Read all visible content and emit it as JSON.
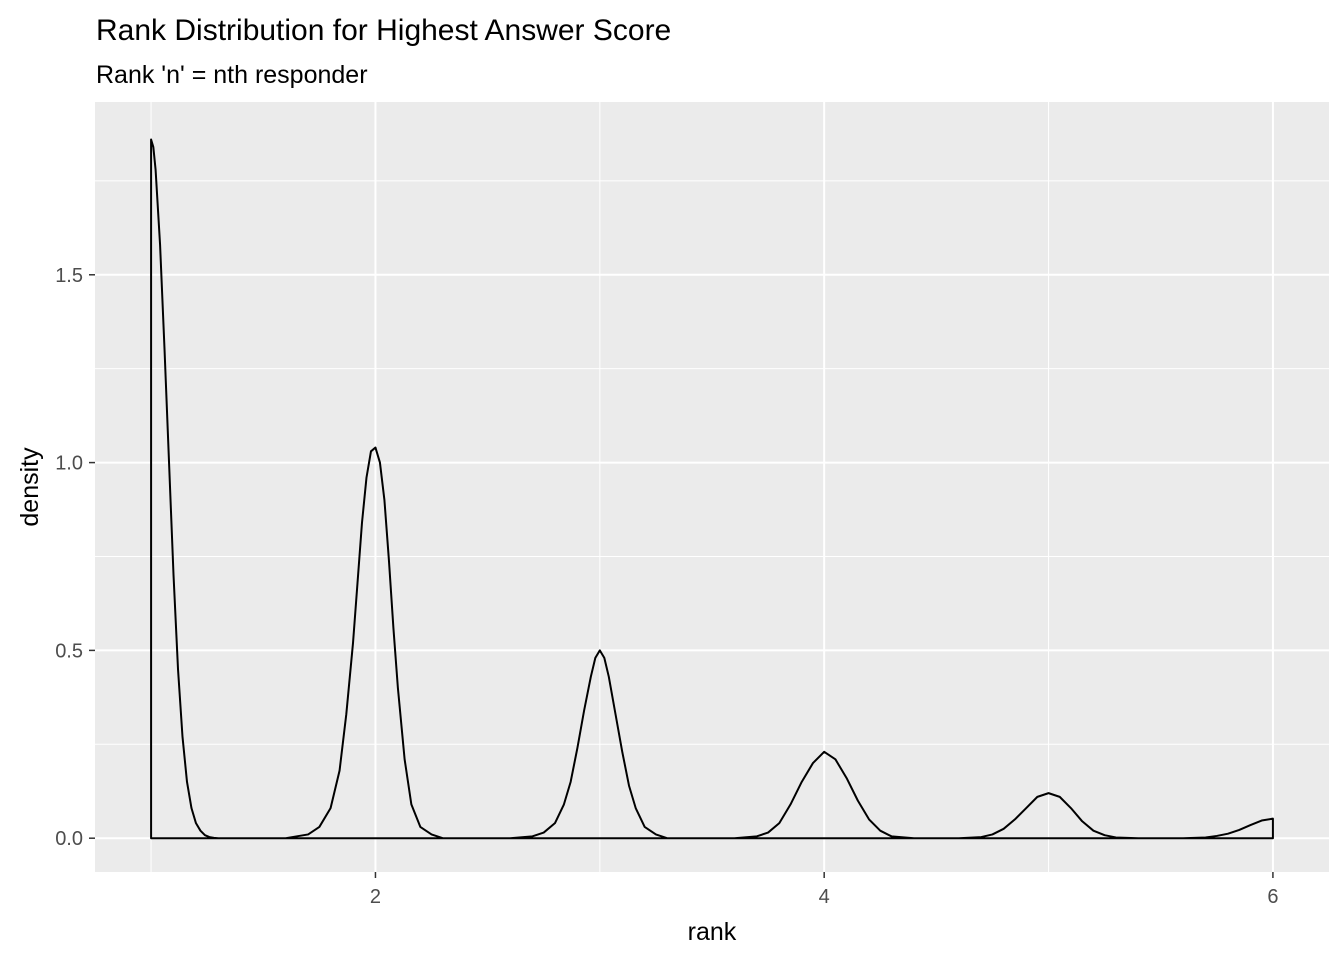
{
  "chart_data": {
    "type": "area",
    "title": "Rank Distribution for Highest Answer Score",
    "subtitle": "Rank 'n' = nth responder",
    "xlabel": "rank",
    "ylabel": "density",
    "xlim": [
      0.75,
      6.25
    ],
    "ylim": [
      -0.09,
      1.96
    ],
    "x_ticks": [
      2,
      4,
      6
    ],
    "x_tick_labels": [
      "2",
      "4",
      "6"
    ],
    "y_ticks": [
      0.0,
      0.5,
      1.0,
      1.5
    ],
    "y_tick_labels": [
      "0.0",
      "0.5",
      "1.0",
      "1.5"
    ],
    "x_minor_ticks": [
      1,
      3,
      5
    ],
    "y_minor_ticks": [
      0.25,
      0.75,
      1.25,
      1.75
    ],
    "grid": true,
    "legend": "none",
    "colors": {
      "panel_background": "#ebebeb",
      "grid": "#ffffff",
      "line": "#000000",
      "fill": "none",
      "tick_text": "#4d4d4d"
    },
    "series": [
      {
        "x": [
          1.0,
          1.01,
          1.02,
          1.04,
          1.06,
          1.08,
          1.1,
          1.12,
          1.14,
          1.16,
          1.18,
          1.2,
          1.22,
          1.24,
          1.26,
          1.28,
          1.3,
          1.33,
          1.36,
          1.4,
          1.45,
          1.5,
          1.6,
          1.7,
          1.75,
          1.8,
          1.84,
          1.87,
          1.9,
          1.92,
          1.94,
          1.96,
          1.98,
          2.0,
          2.02,
          2.04,
          2.06,
          2.08,
          2.1,
          2.13,
          2.16,
          2.2,
          2.25,
          2.3,
          2.4,
          2.6,
          2.7,
          2.75,
          2.8,
          2.84,
          2.87,
          2.9,
          2.93,
          2.96,
          2.98,
          3.0,
          3.02,
          3.04,
          3.07,
          3.1,
          3.13,
          3.16,
          3.2,
          3.25,
          3.3,
          3.4,
          3.6,
          3.7,
          3.75,
          3.8,
          3.85,
          3.9,
          3.95,
          4.0,
          4.05,
          4.1,
          4.15,
          4.2,
          4.25,
          4.3,
          4.4,
          4.6,
          4.7,
          4.75,
          4.8,
          4.85,
          4.9,
          4.95,
          5.0,
          5.05,
          5.1,
          5.15,
          5.2,
          5.25,
          5.3,
          5.4,
          5.6,
          5.7,
          5.75,
          5.8,
          5.85,
          5.9,
          5.95,
          6.0
        ],
        "y": [
          1.86,
          1.84,
          1.78,
          1.58,
          1.3,
          1.0,
          0.7,
          0.45,
          0.27,
          0.15,
          0.08,
          0.04,
          0.02,
          0.008,
          0.003,
          0.001,
          0.0,
          0.0,
          0.0,
          0.0,
          0.0,
          0.0,
          0.0,
          0.01,
          0.03,
          0.08,
          0.18,
          0.33,
          0.52,
          0.68,
          0.84,
          0.96,
          1.03,
          1.04,
          1.0,
          0.9,
          0.74,
          0.56,
          0.4,
          0.21,
          0.09,
          0.03,
          0.01,
          0.0,
          0.0,
          0.0,
          0.005,
          0.015,
          0.04,
          0.09,
          0.15,
          0.24,
          0.34,
          0.43,
          0.48,
          0.5,
          0.48,
          0.43,
          0.33,
          0.23,
          0.14,
          0.08,
          0.03,
          0.01,
          0.0,
          0.0,
          0.0,
          0.005,
          0.015,
          0.04,
          0.09,
          0.15,
          0.2,
          0.23,
          0.21,
          0.16,
          0.1,
          0.05,
          0.02,
          0.005,
          0.0,
          0.0,
          0.003,
          0.01,
          0.025,
          0.05,
          0.08,
          0.11,
          0.12,
          0.11,
          0.08,
          0.045,
          0.02,
          0.008,
          0.002,
          0.0,
          0.0,
          0.002,
          0.006,
          0.012,
          0.022,
          0.035,
          0.047,
          0.052
        ]
      }
    ]
  }
}
